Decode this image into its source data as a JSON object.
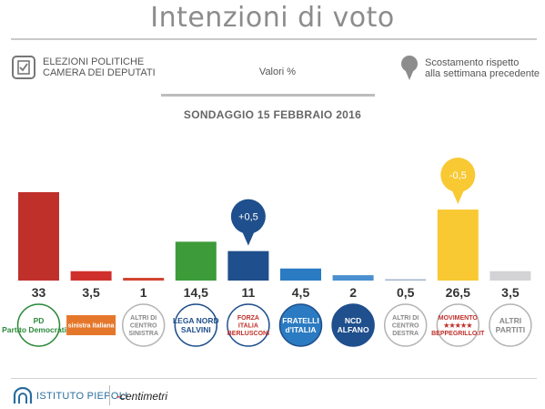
{
  "header": {
    "title": "Intenzioni di voto",
    "left_line1": "ELEZIONI POLITICHE",
    "left_line2": "CAMERA DEI DEPUTATI",
    "center": "Valori %",
    "right_line1": "Scostamento rispetto",
    "right_line2": "alla settimana precedente",
    "survey_date": "SONDAGGIO 15 FEBBRAIO 2016"
  },
  "icons": {
    "left": "ballot-icon",
    "right": "map-pin-icon"
  },
  "chart_data": {
    "type": "bar",
    "title": "Intenzioni di voto",
    "categories": [
      "PD",
      "Sinistra Italiana",
      "Altri di centro sinistra",
      "Lega Nord",
      "Forza Italia",
      "Fratelli d'Italia",
      "NCD",
      "Altri di centro destra",
      "MoVimento 5 Stelle",
      "Altri partiti"
    ],
    "values": [
      33,
      3.5,
      1,
      14.5,
      11,
      4.5,
      2,
      0.5,
      26.5,
      3.5
    ],
    "value_labels": [
      "33",
      "3,5",
      "1",
      "14,5",
      "11",
      "4,5",
      "2",
      "0,5",
      "26,5",
      "3,5"
    ],
    "colors": [
      "#c0302b",
      "#d0302b",
      "#d2412e",
      "#3d9b3a",
      "#1f4f8c",
      "#2b7bc2",
      "#4a8fcf",
      "#9fb3c8",
      "#f8c933",
      "#d3d3d6"
    ],
    "changes": [
      {
        "index": 4,
        "label": "+0,5",
        "color": "#1f4f8c"
      },
      {
        "index": 8,
        "label": "-0,5",
        "color": "#f8c933"
      }
    ],
    "ylabel": "",
    "xlabel": "",
    "ylim": [
      0,
      34
    ],
    "grid": false,
    "legend": "none"
  },
  "logos": [
    {
      "name": "pd-logo",
      "lines": [
        "PD",
        "Partito Democratico"
      ],
      "ring": "#2c8a3a",
      "bg": "#ffffff",
      "fg": "#2c8a3a"
    },
    {
      "name": "sinistra-italiana-logo",
      "lines": [
        "sinistra italiana"
      ],
      "ring": "none",
      "bg": "#e5772b",
      "fg": "#ffffff"
    },
    {
      "name": "altri-centro-sinistra-badge",
      "lines": [
        "ALTRI DI",
        "CENTRO",
        "SINISTRA"
      ],
      "ring": "#b5b5b5",
      "bg": "#ffffff",
      "fg": "#888888"
    },
    {
      "name": "lega-nord-logo",
      "lines": [
        "LEGA NORD",
        "SALVINI"
      ],
      "ring": "#1f4f8c",
      "bg": "#ffffff",
      "fg": "#1f4f8c"
    },
    {
      "name": "forza-italia-logo",
      "lines": [
        "FORZA",
        "ITALIA",
        "BERLUSCONI"
      ],
      "ring": "#1f4f8c",
      "bg": "#ffffff",
      "fg": "#c0302b"
    },
    {
      "name": "fratelli-italia-logo",
      "lines": [
        "FRATELLI",
        "d'ITALIA"
      ],
      "ring": "#1f4f8c",
      "bg": "#2b7bc2",
      "fg": "#ffffff"
    },
    {
      "name": "ncd-logo",
      "lines": [
        "NCD",
        "ALFANO"
      ],
      "ring": "#1f4f8c",
      "bg": "#1f4f8c",
      "fg": "#ffffff"
    },
    {
      "name": "altri-centro-destra-badge",
      "lines": [
        "ALTRI DI",
        "CENTRO",
        "DESTRA"
      ],
      "ring": "#b5b5b5",
      "bg": "#ffffff",
      "fg": "#888888"
    },
    {
      "name": "movimento-5-stelle-logo",
      "lines": [
        "MOVIMENTO",
        "★★★★★",
        "BEPPEGRILLO.IT"
      ],
      "ring": "#b5b5b5",
      "bg": "#ffffff",
      "fg": "#c0302b"
    },
    {
      "name": "altri-partiti-badge",
      "lines": [
        "ALTRI",
        "PARTITI"
      ],
      "ring": "#b5b5b5",
      "bg": "#ffffff",
      "fg": "#888888"
    }
  ],
  "footer": {
    "left_brand": "ISTITUTO PIEPOLI",
    "right_brand_dash": "-",
    "right_brand": "centimetri"
  }
}
